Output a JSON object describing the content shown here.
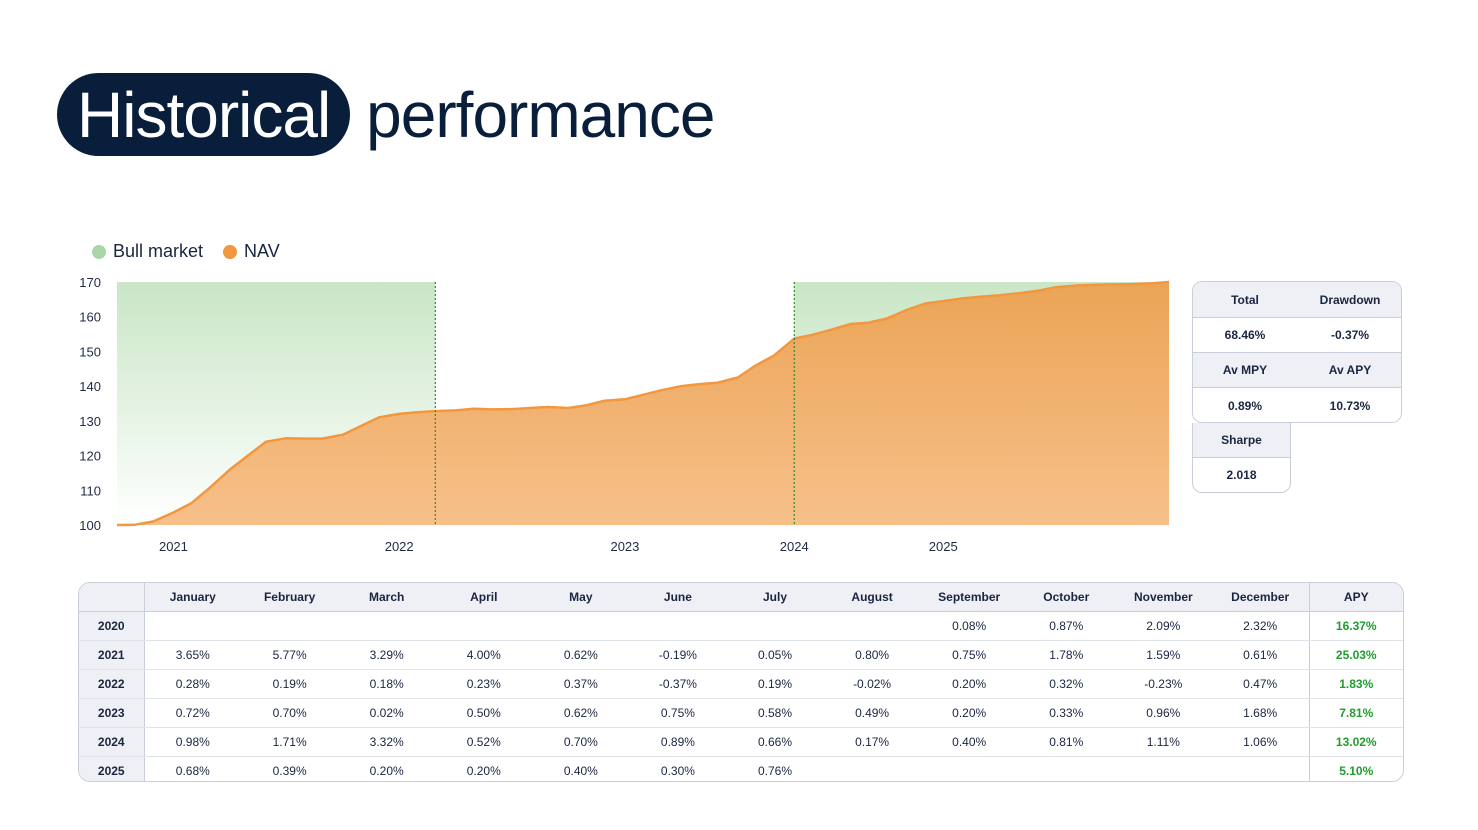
{
  "title": {
    "highlight": "Historical",
    "rest": "performance"
  },
  "legend": [
    {
      "label": "Bull market",
      "color": "#a9d6a6"
    },
    {
      "label": "NAV",
      "color": "#f2973e"
    }
  ],
  "chart_data": {
    "type": "area",
    "series": [
      {
        "name": "NAV",
        "x": [
          2020.92,
          2021.0,
          2021.08,
          2021.17,
          2021.25,
          2021.33,
          2021.42,
          2021.5,
          2021.58,
          2021.67,
          2021.75,
          2021.83,
          2021.92,
          2022.0,
          2022.08,
          2022.17,
          2022.25,
          2022.33,
          2022.42,
          2022.5,
          2022.58,
          2022.67,
          2022.75,
          2022.83,
          2022.92,
          2023.0,
          2023.08,
          2023.17,
          2023.25,
          2023.33,
          2023.42,
          2023.5,
          2023.58,
          2023.67,
          2023.75,
          2023.83,
          2023.92,
          2024.0,
          2024.08,
          2024.17,
          2024.25,
          2024.33,
          2024.42,
          2024.5,
          2024.58,
          2024.67,
          2024.75,
          2024.83,
          2024.92,
          2025.0,
          2025.08,
          2025.17,
          2025.25,
          2025.33,
          2025.42,
          2025.5,
          2025.58
        ],
        "values": [
          100.0,
          100.1,
          101.0,
          103.6,
          106.3,
          110.7,
          116.0,
          120.0,
          124.0,
          125.0,
          124.9,
          124.9,
          126.0,
          128.5,
          131.0,
          132.0,
          132.5,
          132.8,
          133.0,
          133.5,
          133.3,
          133.4,
          133.7,
          134.0,
          133.7,
          134.5,
          135.8,
          136.2,
          137.5,
          138.8,
          140.0,
          140.6,
          141.0,
          142.5,
          146.0,
          148.8,
          153.7,
          154.8,
          156.2,
          157.9,
          158.3,
          159.5,
          162.0,
          163.8,
          164.5,
          165.3,
          165.8,
          166.2,
          166.8,
          167.5,
          168.5,
          169.0,
          169.2,
          169.3,
          169.4,
          169.6,
          170.0
        ],
        "color": "#f2973e"
      }
    ],
    "bull_market_ranges": [
      [
        2020.92,
        2022.33
      ],
      [
        2023.92,
        2025.58
      ]
    ],
    "xlim": [
      2020.92,
      2025.58
    ],
    "ylim": [
      100,
      170
    ],
    "y_ticks": [
      "100",
      "110",
      "120",
      "130",
      "140",
      "150",
      "160",
      "170"
    ],
    "x_ticks": [
      {
        "label": "2021",
        "x": 2021.17
      },
      {
        "label": "2022",
        "x": 2022.17
      },
      {
        "label": "2023",
        "x": 2023.17
      },
      {
        "label": "2024",
        "x": 2023.92
      },
      {
        "label": "2025",
        "x": 2024.58
      }
    ],
    "grid": false
  },
  "stats": {
    "total_label": "Total",
    "total_value": "68.46%",
    "drawdown_label": "Drawdown",
    "drawdown_value": "-0.37%",
    "avmpy_label": "Av MPY",
    "avmpy_value": "0.89%",
    "avapy_label": "Av APY",
    "avapy_value": "10.73%",
    "sharpe_label": "Sharpe",
    "sharpe_value": "2.018"
  },
  "table": {
    "headers": [
      "",
      "January",
      "February",
      "March",
      "April",
      "May",
      "June",
      "July",
      "August",
      "September",
      "October",
      "November",
      "December",
      "APY"
    ],
    "rows": [
      {
        "year": "2020",
        "cells": [
          "",
          "",
          "",
          "",
          "",
          "",
          "",
          "",
          "0.08%",
          "0.87%",
          "2.09%",
          "2.32%"
        ],
        "apy": "16.37%"
      },
      {
        "year": "2021",
        "cells": [
          "3.65%",
          "5.77%",
          "3.29%",
          "4.00%",
          "0.62%",
          "-0.19%",
          "0.05%",
          "0.80%",
          "0.75%",
          "1.78%",
          "1.59%",
          "0.61%"
        ],
        "apy": "25.03%"
      },
      {
        "year": "2022",
        "cells": [
          "0.28%",
          "0.19%",
          "0.18%",
          "0.23%",
          "0.37%",
          "-0.37%",
          "0.19%",
          "-0.02%",
          "0.20%",
          "0.32%",
          "-0.23%",
          "0.47%"
        ],
        "apy": "1.83%"
      },
      {
        "year": "2023",
        "cells": [
          "0.72%",
          "0.70%",
          "0.02%",
          "0.50%",
          "0.62%",
          "0.75%",
          "0.58%",
          "0.49%",
          "0.20%",
          "0.33%",
          "0.96%",
          "1.68%"
        ],
        "apy": "7.81%"
      },
      {
        "year": "2024",
        "cells": [
          "0.98%",
          "1.71%",
          "3.32%",
          "0.52%",
          "0.70%",
          "0.89%",
          "0.66%",
          "0.17%",
          "0.40%",
          "0.81%",
          "1.11%",
          "1.06%"
        ],
        "apy": "13.02%"
      },
      {
        "year": "2025",
        "cells": [
          "0.68%",
          "0.39%",
          "0.20%",
          "0.20%",
          "0.40%",
          "0.30%",
          "0.76%",
          "",
          "",
          "",
          "",
          ""
        ],
        "apy": "5.10%"
      }
    ]
  }
}
